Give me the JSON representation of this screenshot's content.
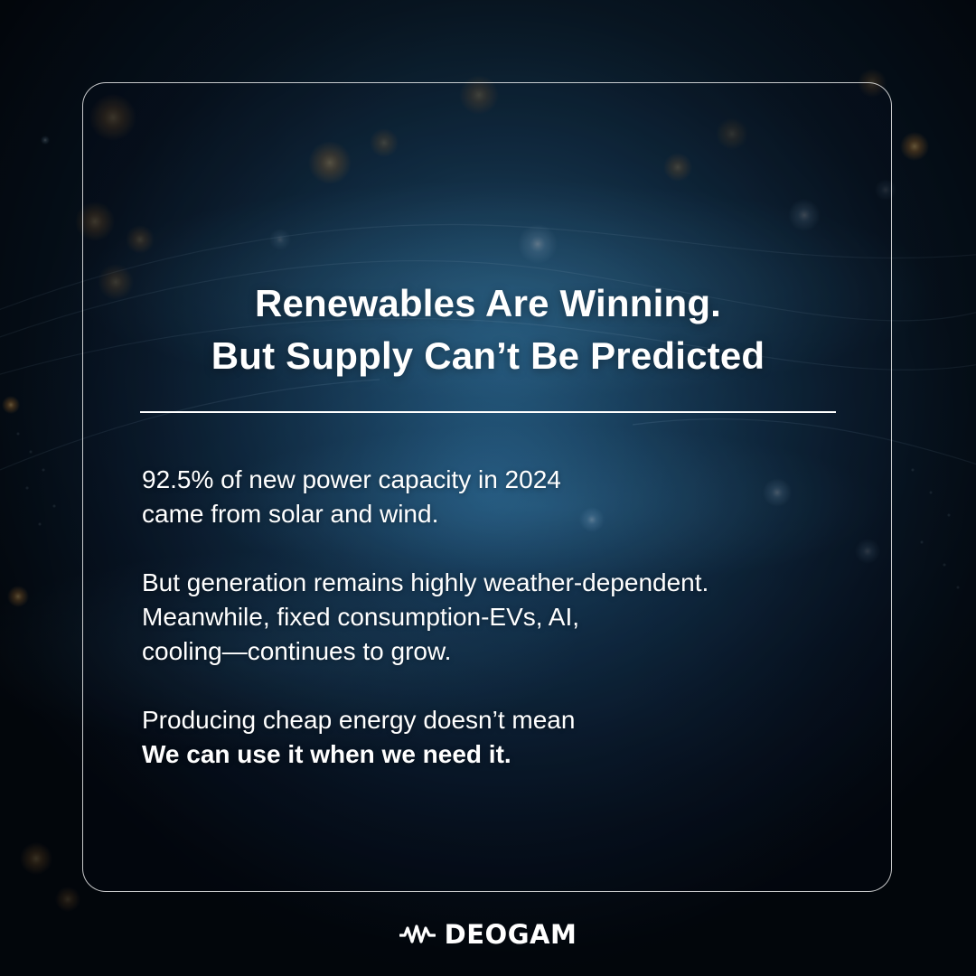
{
  "headline": {
    "line1": "Renewables Are Winning.",
    "line2": "But Supply Can’t Be Predicted"
  },
  "body": {
    "para1": {
      "line1": "92.5% of new power capacity in 2024",
      "line2": "came from solar and wind."
    },
    "para2": {
      "line1": "But generation remains highly weather-dependent.",
      "line2": "Meanwhile, fixed consumption-EVs, AI,",
      "line3": "cooling—continues to grow."
    },
    "para3": {
      "line1": "Producing cheap energy doesn’t mean",
      "line2_bold": "We can use it when we need it."
    }
  },
  "brand": {
    "name": "DEOGAM",
    "logo_icon": "deogam-wave-icon"
  },
  "colors": {
    "text": "#ffffff",
    "background_dark": "#06101e",
    "background_glow": "#1d4a6e",
    "light_warm": "#f2b45a",
    "light_cool": "#cfe6ff"
  }
}
